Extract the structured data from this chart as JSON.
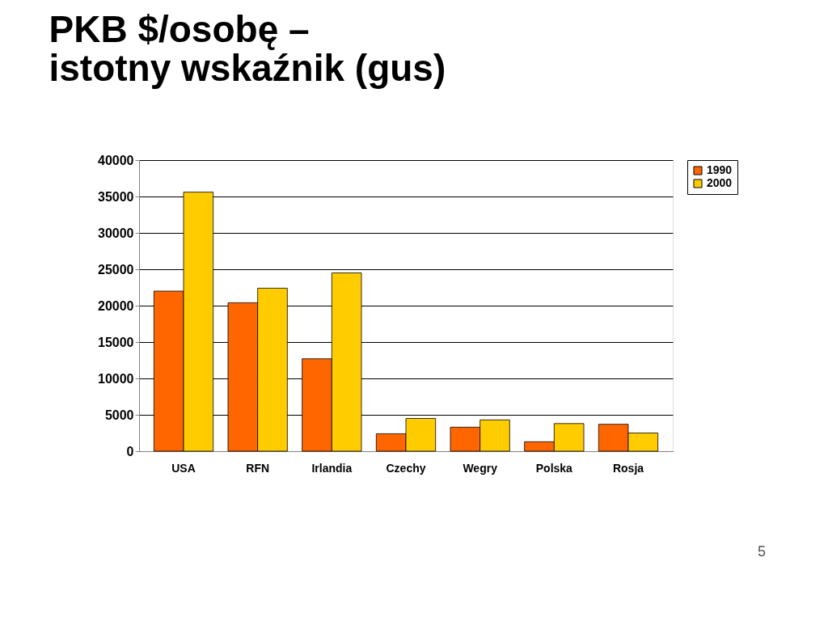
{
  "chart_data": {
    "type": "bar",
    "title": "PKB $/osobę –\nistotny wskaźnik (gus)",
    "categories": [
      "USA",
      "RFN",
      "Irlandia",
      "Czechy",
      "Wegry",
      "Polska",
      "Rosja"
    ],
    "series": [
      {
        "name": "1990",
        "color": "#ff6600",
        "values": [
          22000,
          20400,
          12700,
          2400,
          3300,
          1300,
          3700
        ]
      },
      {
        "name": "2000",
        "color": "#ffcc00",
        "values": [
          35600,
          22400,
          24500,
          4500,
          4300,
          3800,
          2500
        ]
      }
    ],
    "ylim": [
      0,
      40000
    ],
    "yticks": [
      0,
      5000,
      10000,
      15000,
      20000,
      25000,
      30000,
      35000,
      40000
    ],
    "grid": "y",
    "legend": "right",
    "annotations": [
      "5"
    ]
  }
}
